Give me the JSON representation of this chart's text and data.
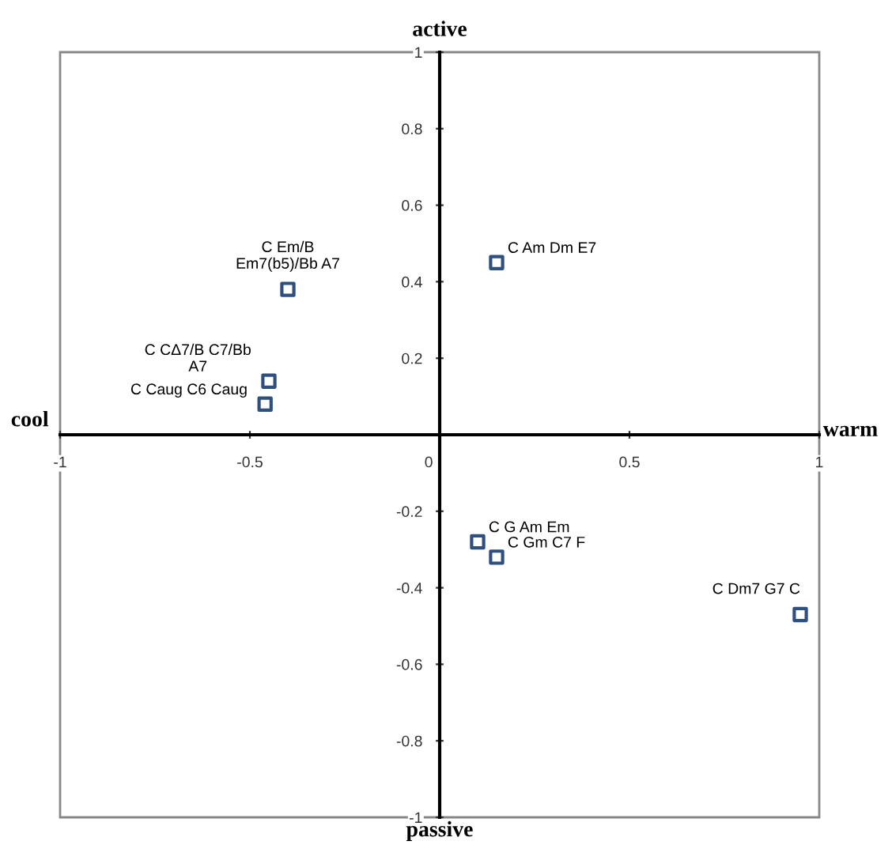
{
  "chart_data": {
    "type": "scatter",
    "xlim": [
      -1,
      1
    ],
    "ylim": [
      -1,
      1
    ],
    "xticks": [
      -1,
      -0.5,
      0,
      0.5,
      1
    ],
    "yticks": [
      -1,
      -0.8,
      -0.6,
      -0.4,
      -0.2,
      {
        "value": 0,
        "label": null
      },
      0.2,
      0.4,
      0.6,
      0.8,
      1
    ],
    "marker": "square",
    "grid": false,
    "series": [
      {
        "color": "#2f4f7f",
        "x": [
          -0.4,
          0.15,
          -0.45,
          -0.46,
          0.1,
          0.15,
          0.95
        ],
        "values": [
          0.38,
          0.45,
          0.14,
          0.08,
          -0.28,
          -0.32,
          -0.47
        ]
      }
    ],
    "annotations": [
      {
        "text": "C Em/B\nEm7(b5)/Bb A7",
        "x": -0.4,
        "y": 0.38
      },
      {
        "text": "C Am Dm E7",
        "x": 0.15,
        "y": 0.45
      },
      {
        "text": "C CΔ7/B C7/Bb\nA7",
        "x": -0.45,
        "y": 0.14
      },
      {
        "text": "C Caug C6 Caug",
        "x": -0.46,
        "y": 0.08
      },
      {
        "text": "C G Am Em",
        "x": 0.1,
        "y": -0.28
      },
      {
        "text": "C Gm C7 F",
        "x": 0.15,
        "y": -0.32
      },
      {
        "text": "C Dm7 G7 C",
        "x": 0.95,
        "y": -0.47
      },
      "cool",
      "warm",
      "active",
      "passive"
    ]
  }
}
